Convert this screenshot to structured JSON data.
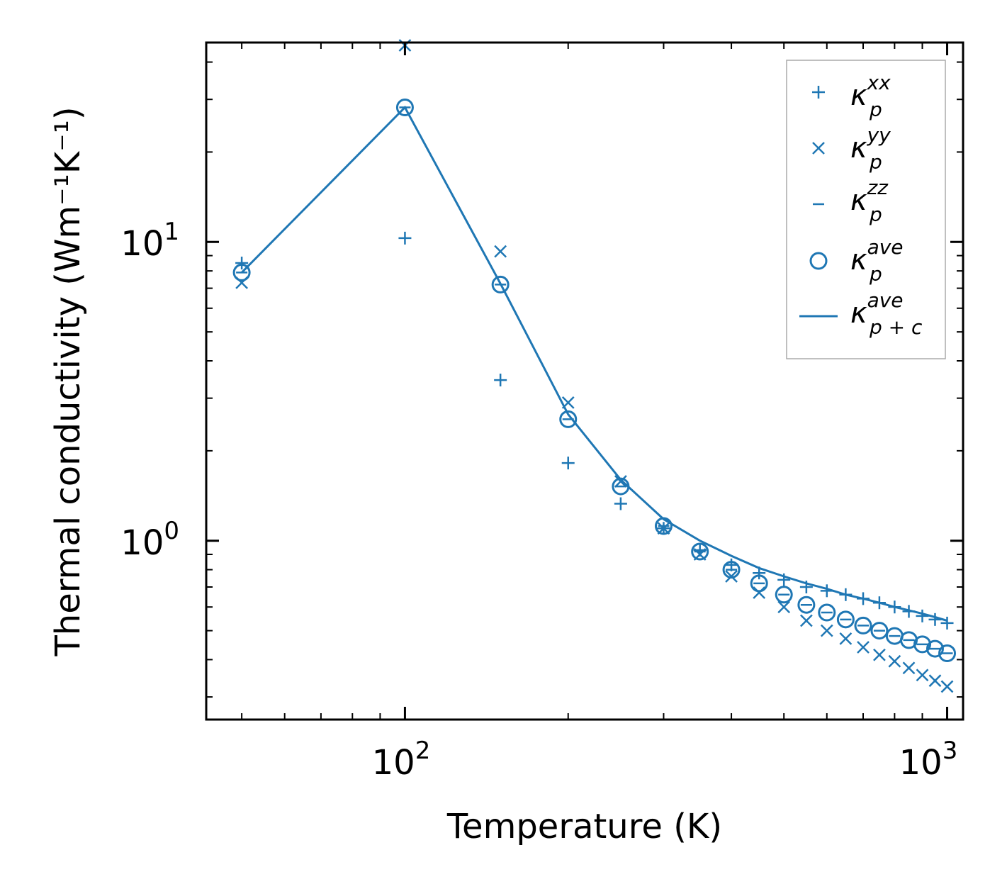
{
  "chart_data": {
    "type": "scatter",
    "title": "",
    "xlabel": "Temperature (K)",
    "ylabel": "Thermal conductivity (Wm⁻¹K⁻¹)",
    "x_scale": "log",
    "y_scale": "log",
    "xlim": [
      43,
      1070
    ],
    "ylim": [
      0.252,
      46.5
    ],
    "x_ticks": [
      {
        "base": "10",
        "exp": "2",
        "value": 100
      },
      {
        "base": "10",
        "exp": "3",
        "value": 1000
      }
    ],
    "y_ticks": [
      {
        "base": "10",
        "exp": "0",
        "value": 1
      },
      {
        "base": "10",
        "exp": "1",
        "value": 10
      }
    ],
    "color": "#1f77b4",
    "legend_position": "top-right",
    "x": [
      50,
      100,
      150,
      200,
      250,
      300,
      350,
      400,
      450,
      500,
      550,
      600,
      650,
      700,
      750,
      800,
      850,
      900,
      950,
      1000
    ],
    "series": [
      {
        "name": "κ_p^xx",
        "label_main": "κ",
        "label_sub": "p",
        "label_sup": "xx",
        "marker": "plus",
        "values": [
          8.5,
          10.3,
          3.45,
          1.82,
          1.33,
          1.1,
          0.93,
          0.83,
          0.78,
          0.74,
          0.7,
          0.68,
          0.66,
          0.64,
          0.62,
          0.6,
          0.58,
          0.56,
          0.545,
          0.53
        ]
      },
      {
        "name": "κ_p^yy",
        "label_main": "κ",
        "label_sub": "p",
        "label_sup": "yy",
        "marker": "x",
        "values": [
          7.3,
          45.5,
          9.3,
          2.9,
          1.58,
          1.1,
          0.9,
          0.76,
          0.67,
          0.6,
          0.54,
          0.5,
          0.47,
          0.44,
          0.415,
          0.395,
          0.375,
          0.355,
          0.34,
          0.325
        ]
      },
      {
        "name": "κ_p^zz",
        "label_main": "κ",
        "label_sub": "p",
        "label_sup": "zz",
        "marker": "hline",
        "values": [
          7.9,
          28.2,
          7.2,
          2.55,
          1.52,
          1.12,
          0.92,
          0.8,
          0.72,
          0.66,
          0.61,
          0.575,
          0.545,
          0.52,
          0.5,
          0.48,
          0.465,
          0.45,
          0.435,
          0.42
        ]
      },
      {
        "name": "κ_p^ave",
        "label_main": "κ",
        "label_sub": "p",
        "label_sup": "ave",
        "marker": "circle",
        "values": [
          7.9,
          28.2,
          7.2,
          2.55,
          1.52,
          1.12,
          0.92,
          0.8,
          0.72,
          0.66,
          0.61,
          0.575,
          0.545,
          0.52,
          0.5,
          0.48,
          0.465,
          0.45,
          0.435,
          0.42
        ]
      },
      {
        "name": "κ_p+c^ave",
        "label_main": "κ",
        "label_sub": "p + c",
        "label_sup": "ave",
        "marker": "line",
        "values": [
          7.9,
          28.2,
          7.25,
          2.65,
          1.6,
          1.18,
          1.0,
          0.89,
          0.81,
          0.76,
          0.72,
          0.69,
          0.66,
          0.64,
          0.62,
          0.6,
          0.585,
          0.57,
          0.555,
          0.54
        ]
      }
    ]
  }
}
